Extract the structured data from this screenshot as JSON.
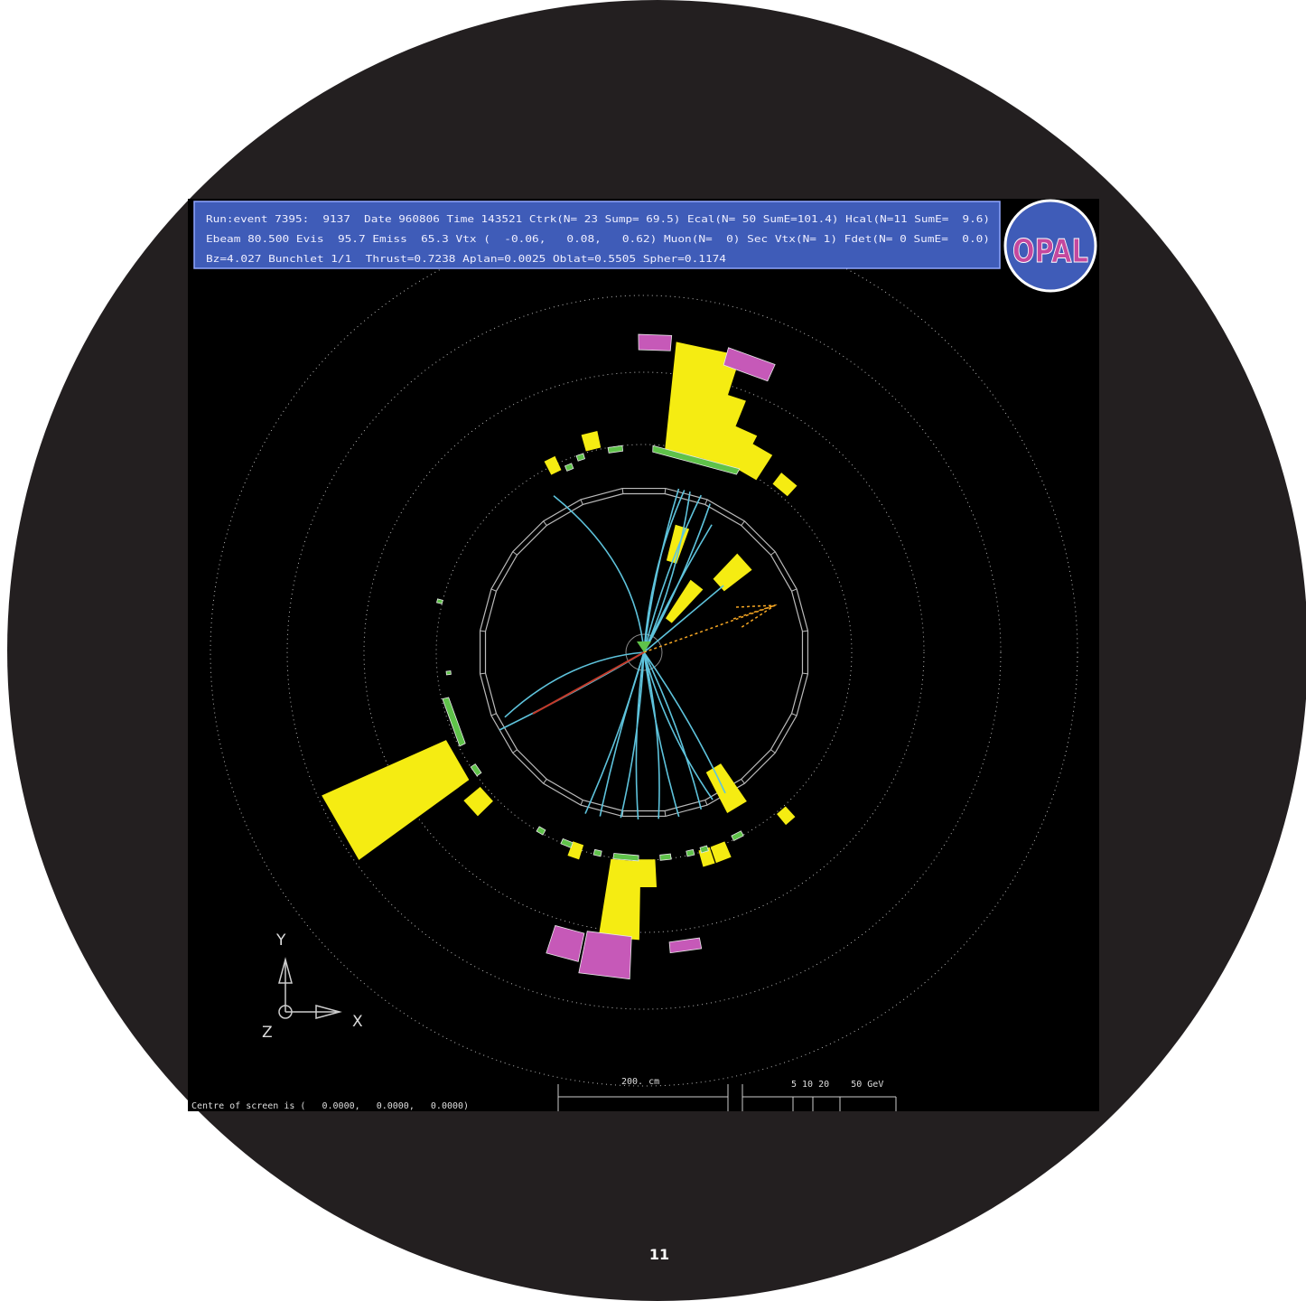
{
  "header": {
    "lines": [
      "Run:event 7395:  9137  Date 960806 Time 143521 Ctrk(N= 23 Sump= 69.5) Ecal(N= 50 SumE=101.4) Hcal(N=11 SumE=  9.6)",
      "Ebeam 80.500 Evis  95.7 Emiss  65.3 Vtx (  -0.06,   0.08,   0.62) Muon(N=  0) Sec Vtx(N= 1) Fdet(N= 0 SumE=  0.0)",
      "Bz=4.027 Bunchlet 1/1  Thrust=0.7238 Aplan=0.0025 Oblat=0.5505 Spher=0.1174"
    ],
    "logo": "OPAL"
  },
  "axes": {
    "y": "Y",
    "x": "X",
    "z": "Z"
  },
  "scale": {
    "length": "200. cm",
    "energy": "5 10 20    50 GeV"
  },
  "footer": "Centre of screen is (   0.0000,   0.0000,   0.0000)",
  "page_number": "11"
}
